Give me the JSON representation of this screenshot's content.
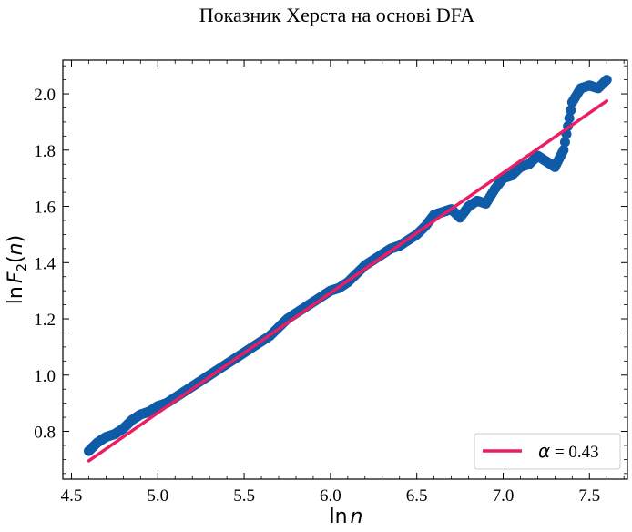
{
  "chart_data": {
    "type": "scatter",
    "title": "Показник Херста на основі DFA",
    "xlabel": {
      "prefix": "ln",
      "var": "n"
    },
    "ylabel": {
      "prefix": "ln",
      "func": "F",
      "sub": "2",
      "arg": "n"
    },
    "xlim": [
      4.45,
      7.72
    ],
    "ylim": [
      0.63,
      2.12
    ],
    "x_ticks": [
      4.5,
      5.0,
      5.5,
      6.0,
      6.5,
      7.0,
      7.5
    ],
    "x_tick_labels": [
      "4.5",
      "5.0",
      "5.5",
      "6.0",
      "6.5",
      "7.0",
      "7.5"
    ],
    "y_ticks": [
      0.8,
      1.0,
      1.2,
      1.4,
      1.6,
      1.8,
      2.0
    ],
    "y_tick_labels": [
      "0.8",
      "1.0",
      "1.2",
      "1.4",
      "1.6",
      "1.8",
      "2.0"
    ],
    "grid": false,
    "legend": {
      "position": "lower-right",
      "symbol": "α",
      "text": " = 0.43"
    },
    "series": [
      {
        "kind": "points",
        "color": "#0f5ba8",
        "x": [
          4.6,
          4.65,
          4.7,
          4.75,
          4.8,
          4.85,
          4.9,
          4.95,
          5.0,
          5.05,
          5.1,
          5.15,
          5.2,
          5.25,
          5.3,
          5.35,
          5.4,
          5.45,
          5.5,
          5.55,
          5.6,
          5.65,
          5.7,
          5.75,
          5.8,
          5.85,
          5.9,
          5.95,
          6.0,
          6.05,
          6.1,
          6.15,
          6.2,
          6.25,
          6.3,
          6.35,
          6.4,
          6.45,
          6.5,
          6.55,
          6.6,
          6.65,
          6.7,
          6.75,
          6.8,
          6.85,
          6.9,
          6.95,
          7.0,
          7.05,
          7.1,
          7.15,
          7.2,
          7.25,
          7.3,
          7.35,
          7.4,
          7.45,
          7.5,
          7.55,
          7.6
        ],
        "y": [
          0.73,
          0.76,
          0.78,
          0.79,
          0.81,
          0.84,
          0.86,
          0.87,
          0.89,
          0.9,
          0.92,
          0.94,
          0.96,
          0.98,
          1.0,
          1.02,
          1.04,
          1.06,
          1.08,
          1.1,
          1.12,
          1.14,
          1.17,
          1.2,
          1.22,
          1.24,
          1.26,
          1.28,
          1.3,
          1.31,
          1.33,
          1.36,
          1.39,
          1.41,
          1.43,
          1.45,
          1.46,
          1.48,
          1.5,
          1.53,
          1.57,
          1.58,
          1.59,
          1.56,
          1.6,
          1.62,
          1.61,
          1.66,
          1.7,
          1.71,
          1.74,
          1.75,
          1.78,
          1.76,
          1.74,
          1.8,
          1.97,
          2.02,
          2.03,
          2.02,
          2.05
        ]
      },
      {
        "kind": "fit-line",
        "color": "#e91e63",
        "x": [
          4.6,
          7.6
        ],
        "y": [
          0.695,
          1.975
        ]
      }
    ]
  }
}
